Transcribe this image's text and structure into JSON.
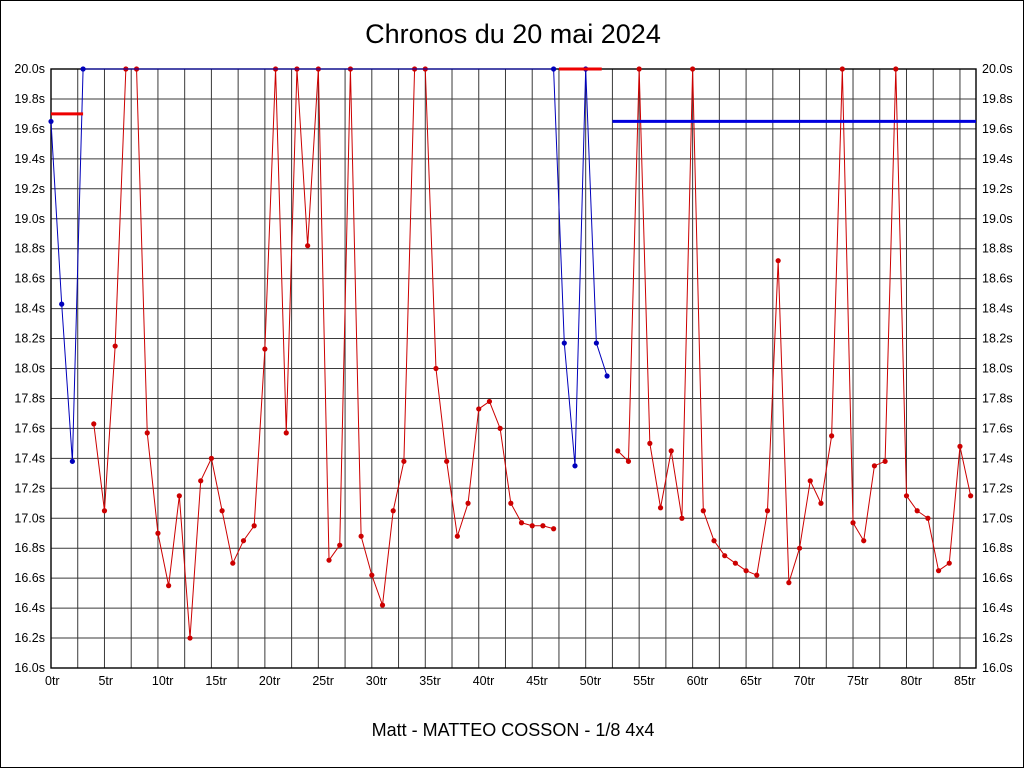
{
  "chart_data": {
    "type": "line",
    "title": "Chronos du 20 mai 2024",
    "subtitle": "Matt - MATTEO COSSON - 1/8 4x4",
    "x_unit": "tr",
    "y_unit": "s",
    "xlim": [
      0,
      86.5
    ],
    "ylim": [
      16.0,
      20.0
    ],
    "x_grid_step": 2.5,
    "y_tick_step": 0.2,
    "x_tick_step": 5,
    "grid_color": "#3a3a3a",
    "axis_color": "#000000",
    "x_tick_labels": [
      "0tr",
      "5tr",
      "10tr",
      "15tr",
      "20tr",
      "25tr",
      "30tr",
      "35tr",
      "40tr",
      "45tr",
      "50tr",
      "55tr",
      "60tr",
      "65tr",
      "70tr",
      "75tr",
      "80tr",
      "85tr"
    ],
    "y_tick_labels": [
      "20.0s",
      "19.8s",
      "19.6s",
      "19.4s",
      "19.2s",
      "19.0s",
      "18.8s",
      "18.6s",
      "18.4s",
      "18.2s",
      "18.0s",
      "17.8s",
      "17.6s",
      "17.4s",
      "17.2s",
      "17.0s",
      "16.8s",
      "16.6s",
      "16.4s",
      "16.2s",
      "16.0s"
    ],
    "series": [
      {
        "name": "lap-times-red",
        "color": "#cc0000",
        "width": 1,
        "markers": true,
        "runs": [
          {
            "x_start": 4,
            "y": [
              17.63,
              17.05,
              18.15,
              20,
              20,
              17.57,
              16.9,
              16.55,
              17.15,
              16.2,
              17.25,
              17.4,
              17.05,
              16.7,
              16.85,
              16.95,
              18.13,
              20,
              17.57,
              20,
              18.82,
              20,
              16.72,
              16.82,
              20,
              16.88,
              16.62,
              16.42,
              17.05,
              17.38,
              20,
              20,
              18.0,
              17.38,
              16.88,
              17.1,
              17.73,
              17.78,
              17.6,
              17.1,
              16.97,
              16.95,
              16.95,
              16.93
            ]
          },
          {
            "x_start": 53,
            "y": [
              17.45,
              17.38,
              20,
              17.5,
              17.07,
              17.45,
              17.0,
              20,
              17.05,
              16.85,
              16.75,
              16.7,
              16.65,
              16.62,
              17.05,
              18.72,
              16.57,
              16.8,
              17.25,
              17.1,
              17.55,
              20,
              16.97,
              16.85,
              17.35,
              17.38,
              20,
              17.15,
              17.05,
              17.0,
              16.65,
              16.7,
              17.48,
              17.15
            ]
          }
        ]
      },
      {
        "name": "lap-times-blue",
        "color": "#0000bb",
        "width": 1,
        "markers": true,
        "runs": [
          {
            "x": [
              0,
              1,
              2,
              3,
              47,
              48,
              49,
              50,
              51,
              52
            ],
            "y": [
              19.65,
              18.43,
              17.38,
              20,
              20,
              18.17,
              17.35,
              20,
              18.17,
              17.95
            ]
          }
        ]
      },
      {
        "name": "red-reference-line",
        "color": "#ee0000",
        "width": 3,
        "markers": false,
        "runs": [
          {
            "x": [
              0,
              3
            ],
            "y": [
              19.7,
              19.7
            ]
          },
          {
            "x": [
              47.5,
              51.5
            ],
            "y": [
              20,
              20
            ]
          }
        ]
      },
      {
        "name": "blue-reference-line",
        "color": "#0000dd",
        "width": 3,
        "markers": false,
        "runs": [
          {
            "x": [
              52.5,
              86.5
            ],
            "y": [
              19.65,
              19.65
            ]
          }
        ]
      }
    ]
  }
}
